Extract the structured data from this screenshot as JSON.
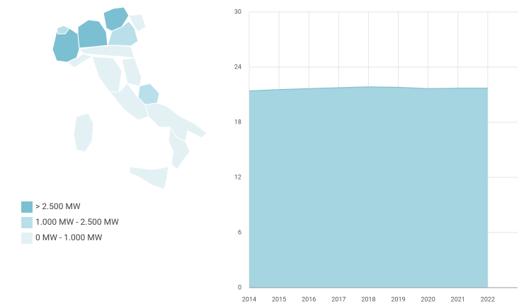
{
  "legend": {
    "items": [
      {
        "label": "> 2.500 MW",
        "color": "#7bc0d2"
      },
      {
        "label": "1.000 MW - 2.500 MW",
        "color": "#b9e0ea"
      },
      {
        "label": "0 MW - 1.000 MW",
        "color": "#e3f1f5"
      }
    ]
  },
  "chart_data": {
    "type": "area",
    "color": "#a6d5e2",
    "line_color": "#8cc4d4",
    "x": [
      2014,
      2015,
      2016,
      2017,
      2018,
      2019,
      2020,
      2021,
      2022
    ],
    "values": [
      21.4,
      21.55,
      21.65,
      21.75,
      21.85,
      21.8,
      21.65,
      21.7,
      21.7
    ],
    "xlim": [
      2014,
      2023
    ],
    "xticks": [
      2014,
      2015,
      2016,
      2017,
      2018,
      2019,
      2020,
      2021,
      2022
    ],
    "ylim": [
      0,
      30
    ],
    "yticks": [
      0,
      6,
      12,
      18,
      24,
      30
    ],
    "grid": true
  }
}
